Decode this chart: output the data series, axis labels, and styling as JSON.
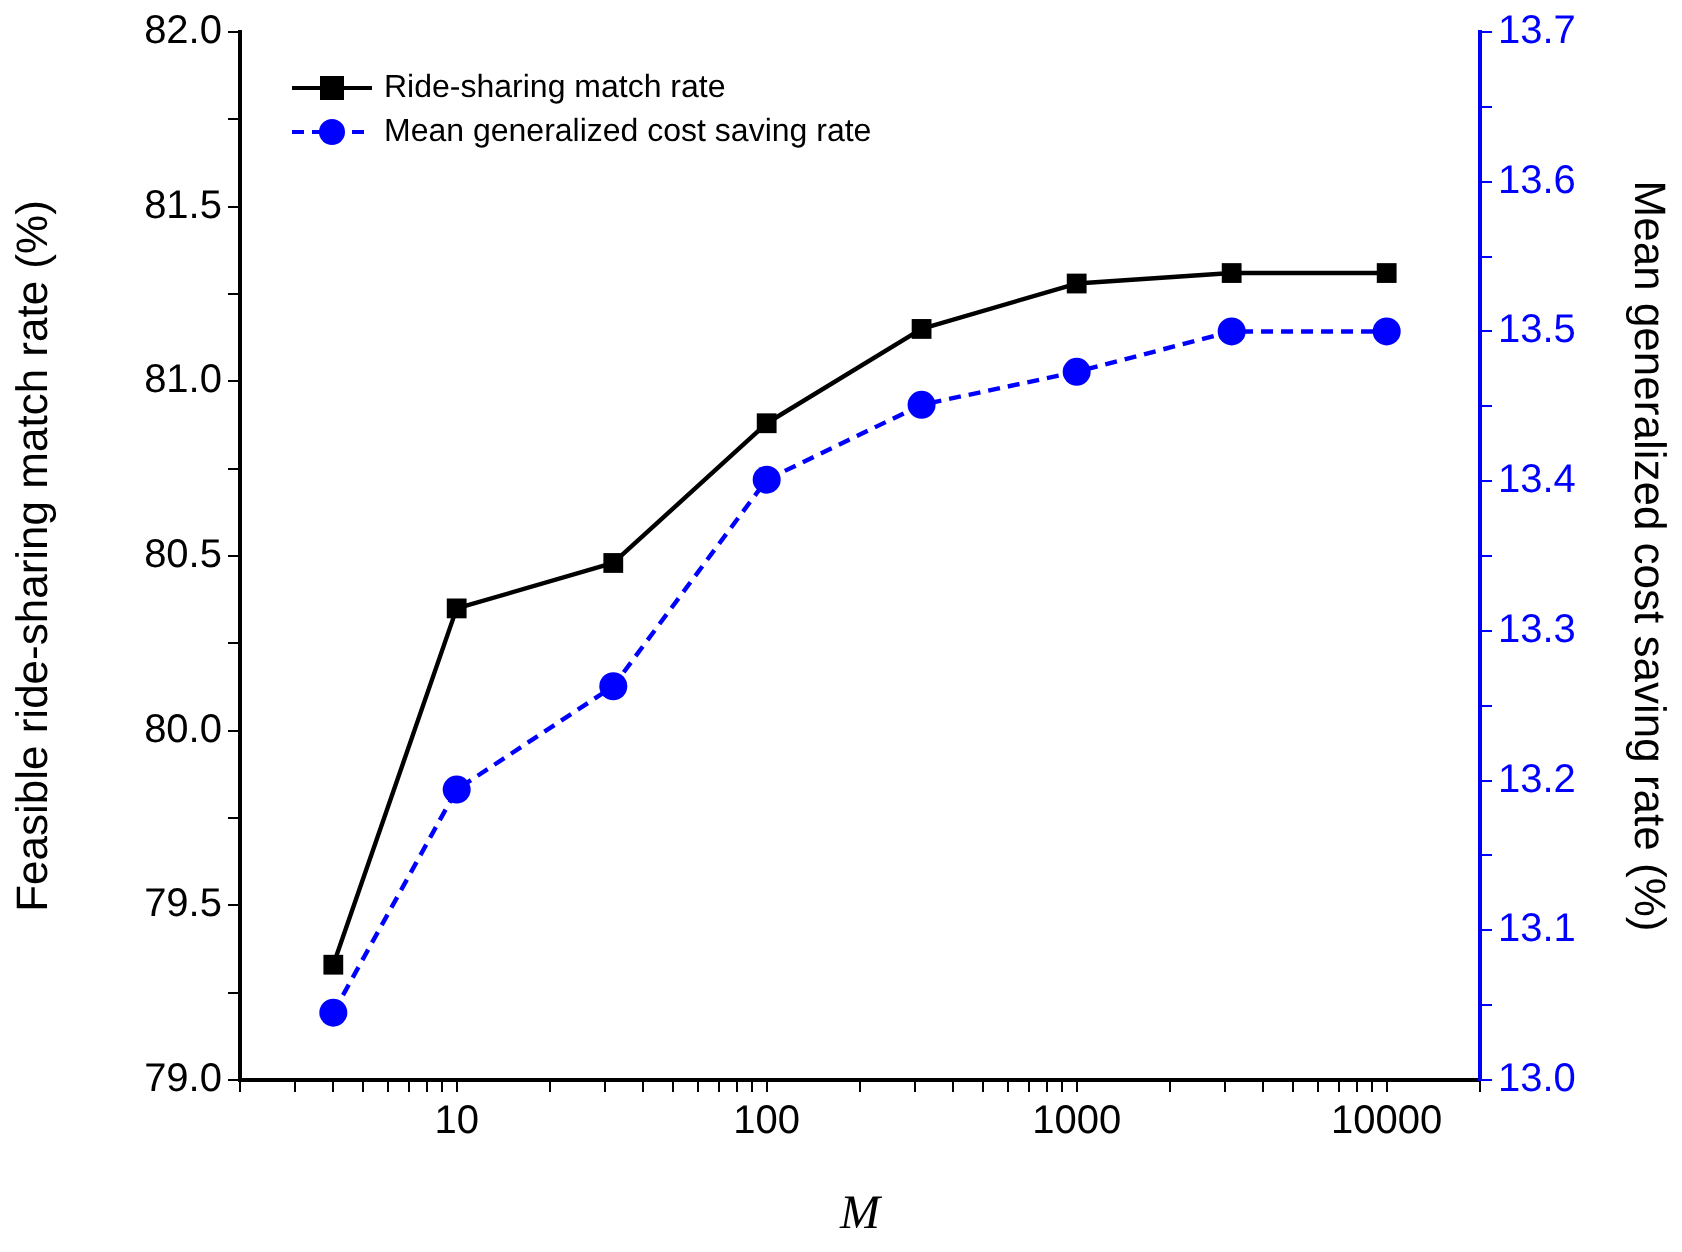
{
  "chart_data": {
    "type": "line",
    "xlabel": "M",
    "ylabel": "Feasible ride-sharing match rate (%)",
    "y2label": "Mean generalized cost saving rate (%)",
    "x": [
      4,
      10,
      32,
      100,
      316,
      1000,
      3162,
      10000
    ],
    "series": [
      {
        "name": "Ride-sharing match rate",
        "color": "#000000",
        "marker": "square",
        "line_style": "solid",
        "values": [
          79.33,
          80.35,
          80.48,
          80.88,
          81.15,
          81.28,
          81.31,
          81.31
        ]
      },
      {
        "name": "Mean generalized cost saving rate",
        "color": "#0000ff",
        "marker": "circle",
        "line_style": "dashed",
        "axis": "y2",
        "values": [
          13.045,
          13.194,
          13.263,
          13.401,
          13.451,
          13.473,
          13.5,
          13.5
        ]
      }
    ],
    "log": "x",
    "xlim": [
      2,
      20000
    ],
    "xticks": [
      {
        "value": 2,
        "label": null
      },
      {
        "value": 3,
        "label": null
      },
      {
        "value": 4,
        "label": null
      },
      {
        "value": 5,
        "label": null
      },
      {
        "value": 6,
        "label": null
      },
      {
        "value": 7,
        "label": null
      },
      {
        "value": 8,
        "label": null
      },
      {
        "value": 9,
        "label": null
      },
      10,
      {
        "value": 20,
        "label": null
      },
      {
        "value": 30,
        "label": null
      },
      {
        "value": 40,
        "label": null
      },
      {
        "value": 50,
        "label": null
      },
      {
        "value": 60,
        "label": null
      },
      {
        "value": 70,
        "label": null
      },
      {
        "value": 80,
        "label": null
      },
      {
        "value": 90,
        "label": null
      },
      100,
      {
        "value": 200,
        "label": null
      },
      {
        "value": 300,
        "label": null
      },
      {
        "value": 400,
        "label": null
      },
      {
        "value": 500,
        "label": null
      },
      {
        "value": 600,
        "label": null
      },
      {
        "value": 700,
        "label": null
      },
      {
        "value": 800,
        "label": null
      },
      {
        "value": 900,
        "label": null
      },
      1000,
      {
        "value": 2000,
        "label": null
      },
      {
        "value": 3000,
        "label": null
      },
      {
        "value": 4000,
        "label": null
      },
      {
        "value": 5000,
        "label": null
      },
      {
        "value": 6000,
        "label": null
      },
      {
        "value": 7000,
        "label": null
      },
      {
        "value": 8000,
        "label": null
      },
      {
        "value": 9000,
        "label": null
      },
      10000,
      {
        "value": 20000,
        "label": null
      }
    ],
    "ylim": [
      79.0,
      82.0
    ],
    "yticks": [
      {
        "value": 79.0,
        "label": "79.0"
      },
      {
        "value": 79.25,
        "label": null
      },
      {
        "value": 79.5,
        "label": "79.5"
      },
      {
        "value": 79.75,
        "label": null
      },
      {
        "value": 80.0,
        "label": "80.0"
      },
      {
        "value": 80.25,
        "label": null
      },
      {
        "value": 80.5,
        "label": "80.5"
      },
      {
        "value": 80.75,
        "label": null
      },
      {
        "value": 81.0,
        "label": "81.0"
      },
      {
        "value": 81.25,
        "label": null
      },
      {
        "value": 81.5,
        "label": "81.5"
      },
      {
        "value": 81.75,
        "label": null
      },
      {
        "value": 82.0,
        "label": "82.0"
      }
    ],
    "y2lim": [
      13.0,
      13.7
    ],
    "y2ticks": [
      {
        "value": 13.0,
        "label": "13.0"
      },
      {
        "value": 13.05,
        "label": null
      },
      {
        "value": 13.1,
        "label": "13.1"
      },
      {
        "value": 13.15,
        "label": null
      },
      {
        "value": 13.2,
        "label": "13.2"
      },
      {
        "value": 13.25,
        "label": null
      },
      {
        "value": 13.3,
        "label": "13.3"
      },
      {
        "value": 13.35,
        "label": null
      },
      {
        "value": 13.4,
        "label": "13.4"
      },
      {
        "value": 13.45,
        "label": null
      },
      {
        "value": 13.5,
        "label": "13.5"
      },
      {
        "value": 13.55,
        "label": null
      },
      {
        "value": 13.6,
        "label": "13.6"
      },
      {
        "value": 13.65,
        "label": null
      },
      {
        "value": 13.7,
        "label": "13.7"
      }
    ],
    "grid": false,
    "legend": "top left"
  }
}
